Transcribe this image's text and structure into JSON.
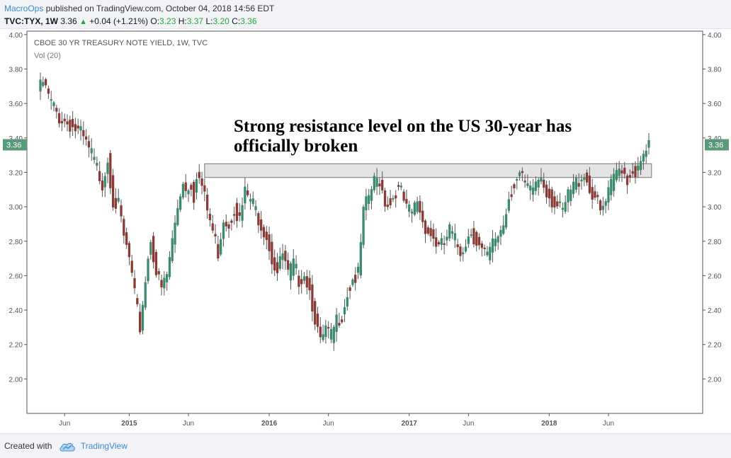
{
  "header": {
    "author": "MacroOps",
    "published_text": "published on TradingView.com, October 04, 2018 14:56 EDT",
    "symbol": "TVC:TYX, 1W",
    "last": "3.36",
    "change": "+0.04 (+1.21%)",
    "open_label": "O:",
    "open": "3.23",
    "high_label": "H:",
    "high": "3.37",
    "low_label": "L:",
    "low": "3.20",
    "close_label": "C:",
    "close": "3.36"
  },
  "footer": {
    "created_with": "Created with",
    "brand": "TradingView"
  },
  "colors": {
    "up": "#3a8a6e",
    "down": "#8a3a34",
    "accent": "#3d8bd3",
    "price_tag": "#5a9a7a",
    "zone": "#d9d9d9"
  },
  "chart_data": {
    "type": "candlestick",
    "title": "CBOE 30 YR TREASURY NOTE YIELD, 1W, TVC",
    "indicator": "Vol (20)",
    "annotation": "Strong resistance level on the US 30-year has officially broken",
    "annotation_lines": [
      "Strong resistance level on the US 30-year has",
      "officially broken"
    ],
    "ylim": [
      1.8,
      4.02
    ],
    "y_ticks": [
      "4.00",
      "3.80",
      "3.60",
      "3.40",
      "3.20",
      "3.00",
      "2.80",
      "2.60",
      "2.40",
      "2.20",
      "2.00"
    ],
    "x_ticks": [
      {
        "label": "Jun",
        "week": 10,
        "bold": false
      },
      {
        "label": "2015",
        "week": 34,
        "bold": true
      },
      {
        "label": "Jun",
        "week": 56,
        "bold": false
      },
      {
        "label": "2016",
        "week": 86,
        "bold": true
      },
      {
        "label": "Jun",
        "week": 108,
        "bold": false
      },
      {
        "label": "2017",
        "week": 138,
        "bold": true
      },
      {
        "label": "Jun",
        "week": 160,
        "bold": false
      },
      {
        "label": "2018",
        "week": 190,
        "bold": true
      },
      {
        "label": "Jun",
        "week": 212,
        "bold": false
      }
    ],
    "x_range_weeks": [
      -4,
      247
    ],
    "last_price": "3.36",
    "resistance_zone": {
      "low": 3.17,
      "high": 3.25,
      "start_week": 62,
      "end_week": 228
    },
    "anchors": [
      [
        0,
        3.66
      ],
      [
        2,
        3.72
      ],
      [
        5,
        3.6
      ],
      [
        8,
        3.52
      ],
      [
        12,
        3.48
      ],
      [
        16,
        3.42
      ],
      [
        20,
        3.3
      ],
      [
        24,
        3.14
      ],
      [
        26,
        3.28
      ],
      [
        28,
        3.04
      ],
      [
        30,
        3.0
      ],
      [
        32,
        2.82
      ],
      [
        34,
        2.7
      ],
      [
        36,
        2.48
      ],
      [
        38,
        2.3
      ],
      [
        40,
        2.58
      ],
      [
        42,
        2.82
      ],
      [
        44,
        2.62
      ],
      [
        46,
        2.52
      ],
      [
        48,
        2.6
      ],
      [
        52,
        3.0
      ],
      [
        54,
        3.16
      ],
      [
        55,
        3.1
      ],
      [
        57,
        3.14
      ],
      [
        58,
        3.06
      ],
      [
        59,
        3.2
      ],
      [
        61,
        3.12
      ],
      [
        63,
        2.98
      ],
      [
        65,
        2.86
      ],
      [
        67,
        2.74
      ],
      [
        69,
        2.94
      ],
      [
        71,
        2.9
      ],
      [
        73,
        3.0
      ],
      [
        75,
        2.92
      ],
      [
        77,
        3.08
      ],
      [
        79,
        3.04
      ],
      [
        81,
        2.98
      ],
      [
        83,
        2.9
      ],
      [
        85,
        2.84
      ],
      [
        87,
        2.7
      ],
      [
        89,
        2.62
      ],
      [
        91,
        2.72
      ],
      [
        93,
        2.6
      ],
      [
        95,
        2.66
      ],
      [
        97,
        2.58
      ],
      [
        99,
        2.62
      ],
      [
        101,
        2.52
      ],
      [
        103,
        2.36
      ],
      [
        105,
        2.2
      ],
      [
        107,
        2.28
      ],
      [
        109,
        2.24
      ],
      [
        111,
        2.34
      ],
      [
        113,
        2.38
      ],
      [
        115,
        2.5
      ],
      [
        117,
        2.58
      ],
      [
        119,
        2.6
      ],
      [
        121,
        2.96
      ],
      [
        123,
        3.06
      ],
      [
        125,
        3.14
      ],
      [
        127,
        3.16
      ],
      [
        129,
        3.04
      ],
      [
        131,
        3.02
      ],
      [
        133,
        3.1
      ],
      [
        135,
        3.08
      ],
      [
        137,
        2.98
      ],
      [
        139,
        2.96
      ],
      [
        141,
        3.04
      ],
      [
        143,
        2.92
      ],
      [
        145,
        2.86
      ],
      [
        147,
        2.82
      ],
      [
        149,
        2.76
      ],
      [
        151,
        2.78
      ],
      [
        153,
        2.86
      ],
      [
        155,
        2.8
      ],
      [
        157,
        2.74
      ],
      [
        159,
        2.8
      ],
      [
        161,
        2.86
      ],
      [
        163,
        2.8
      ],
      [
        165,
        2.74
      ],
      [
        167,
        2.7
      ],
      [
        169,
        2.78
      ],
      [
        171,
        2.84
      ],
      [
        173,
        2.9
      ],
      [
        175,
        3.06
      ],
      [
        177,
        3.14
      ],
      [
        179,
        3.18
      ],
      [
        181,
        3.12
      ],
      [
        183,
        3.08
      ],
      [
        185,
        3.14
      ],
      [
        187,
        3.18
      ],
      [
        189,
        3.1
      ],
      [
        191,
        3.04
      ],
      [
        193,
        3.0
      ],
      [
        195,
        2.96
      ],
      [
        197,
        3.06
      ],
      [
        199,
        3.12
      ],
      [
        201,
        3.16
      ],
      [
        203,
        3.2
      ],
      [
        205,
        3.1
      ],
      [
        207,
        3.06
      ],
      [
        209,
        2.96
      ],
      [
        211,
        3.02
      ],
      [
        213,
        3.12
      ],
      [
        215,
        3.2
      ],
      [
        217,
        3.24
      ],
      [
        219,
        3.16
      ],
      [
        221,
        3.22
      ],
      [
        223,
        3.2
      ],
      [
        225,
        3.28
      ],
      [
        227,
        3.36
      ]
    ]
  }
}
